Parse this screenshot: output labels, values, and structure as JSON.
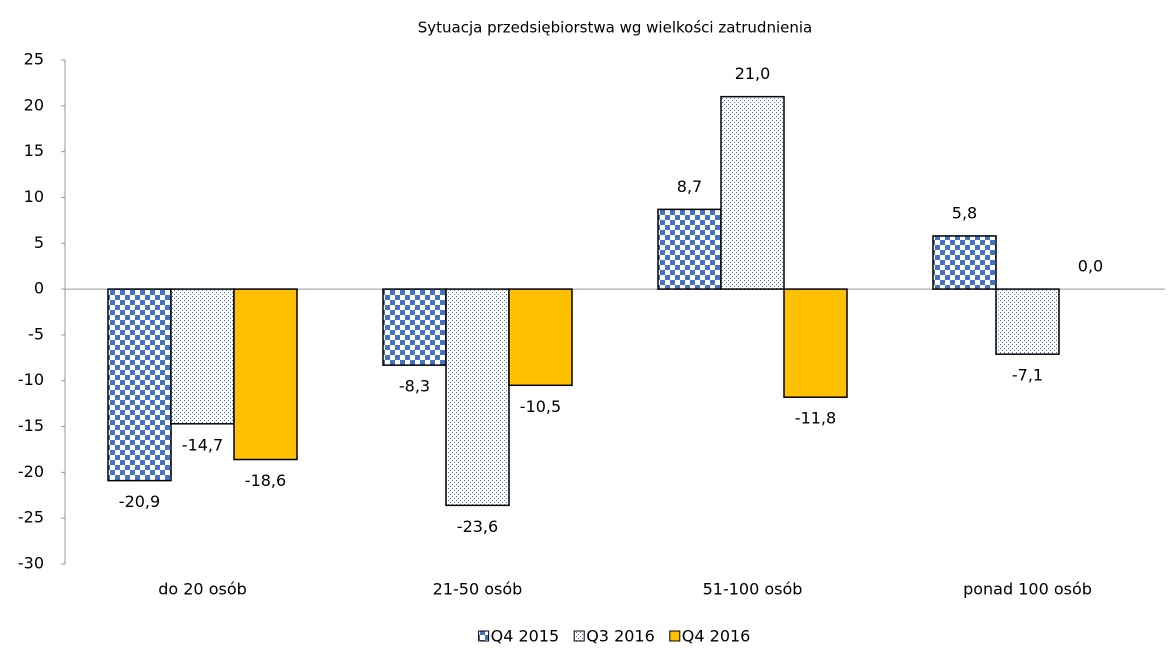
{
  "chart_data": {
    "type": "bar",
    "title": "Sytuacja przedsiębiorstwa wg wielkości zatrudnienia",
    "categories": [
      "do 20 osób",
      "21-50 osób",
      "51-100 osób",
      "ponad 100 osób"
    ],
    "series": [
      {
        "name": "Q4 2015",
        "color": "#4472c4",
        "pattern": "checker",
        "values": [
          -20.9,
          -8.3,
          8.7,
          5.8
        ],
        "value_labels": [
          "-20,9",
          "-8,3",
          "8,7",
          "5,8"
        ]
      },
      {
        "name": "Q3 2016",
        "color": "#4472c4",
        "pattern": "dots",
        "values": [
          -14.7,
          -23.6,
          21.0,
          -7.1
        ],
        "value_labels": [
          "-14,7",
          "-23,6",
          "21,0",
          "-7,1"
        ]
      },
      {
        "name": "Q4 2016",
        "color": "#ffc000",
        "pattern": "solid",
        "values": [
          -18.6,
          -10.5,
          -11.8,
          0.0
        ],
        "value_labels": [
          "-18,6",
          "-10,5",
          "-11,8",
          "0,0"
        ]
      }
    ],
    "ylim": [
      -30,
      25
    ],
    "yticks": [
      25,
      20,
      15,
      10,
      5,
      0,
      -5,
      -10,
      -15,
      -20,
      -25,
      -30
    ],
    "grid": false,
    "legend": "bottom"
  }
}
